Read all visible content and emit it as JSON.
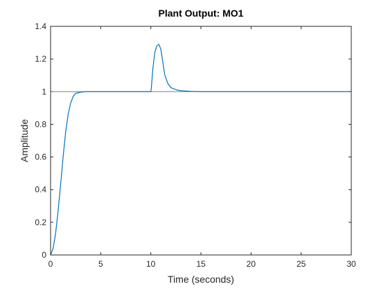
{
  "chart_data": {
    "type": "line",
    "title": "Plant Output: MO1",
    "xlabel": "Time (seconds)",
    "ylabel": "Amplitude",
    "xlim": [
      0,
      30
    ],
    "ylim": [
      0,
      1.4
    ],
    "xticks": [
      0,
      5,
      10,
      15,
      20,
      25,
      30
    ],
    "yticks": [
      0,
      0.2,
      0.4,
      0.6,
      0.8,
      1,
      1.2,
      1.4
    ],
    "xtick_labels": [
      "0",
      "5",
      "10",
      "15",
      "20",
      "25",
      "30"
    ],
    "ytick_labels": [
      "0",
      "0.2",
      "0.4",
      "0.6",
      "0.8",
      "1",
      "1.2",
      "1.4"
    ],
    "grid": false,
    "box": true,
    "colors": {
      "series": "#0072BD",
      "reference": "#808080",
      "axes": "#262626"
    },
    "reference_line": {
      "y": 1
    },
    "series": [
      {
        "x": [
          0,
          0.25,
          0.5,
          0.75,
          1.0,
          1.25,
          1.5,
          1.75,
          2.0,
          2.25,
          2.5,
          3.0,
          3.5,
          4.0,
          5.0,
          7.5,
          10.0,
          10.05,
          10.2,
          10.4,
          10.6,
          10.8,
          11.0,
          11.2,
          11.4,
          11.7,
          12.0,
          12.5,
          13.0,
          14.0,
          15.0,
          20.0,
          25.0,
          30.0
        ],
        "y": [
          0,
          0.04,
          0.13,
          0.27,
          0.43,
          0.6,
          0.75,
          0.86,
          0.93,
          0.97,
          0.99,
          0.997,
          1.0,
          1.0,
          1.0,
          1.0,
          1.0,
          1.02,
          1.14,
          1.24,
          1.28,
          1.29,
          1.26,
          1.18,
          1.1,
          1.05,
          1.025,
          1.012,
          1.006,
          1.002,
          1.0,
          1.0,
          1.0,
          1.0
        ]
      }
    ]
  }
}
